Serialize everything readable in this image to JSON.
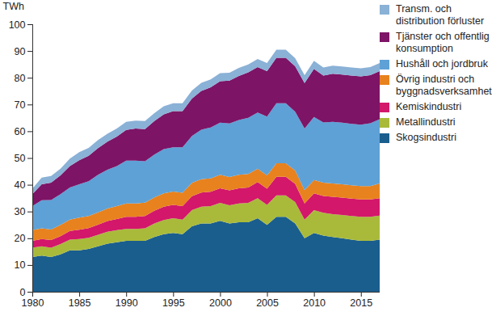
{
  "chart_data": {
    "type": "area",
    "stacked": true,
    "y_label": "TWh",
    "x": [
      1980,
      1981,
      1982,
      1983,
      1984,
      1985,
      1986,
      1987,
      1988,
      1989,
      1990,
      1991,
      1992,
      1993,
      1994,
      1995,
      1996,
      1997,
      1998,
      1999,
      2000,
      2001,
      2002,
      2003,
      2004,
      2005,
      2006,
      2007,
      2008,
      2009,
      2010,
      2011,
      2012,
      2013,
      2014,
      2015,
      2016,
      2017
    ],
    "xlim": [
      1980,
      2017
    ],
    "xticks": [
      1980,
      1985,
      1990,
      1995,
      2000,
      2005,
      2010,
      2015
    ],
    "ylim": [
      0,
      100
    ],
    "yticks": [
      0,
      10,
      20,
      30,
      40,
      50,
      60,
      70,
      80,
      90,
      100
    ],
    "grid": false,
    "legend": "right",
    "series": [
      {
        "name": "Skogsindustri",
        "color": "#1a5e8e",
        "values": [
          13,
          13.5,
          13,
          14,
          15.5,
          15.5,
          16,
          17,
          18,
          18.5,
          19,
          19,
          19,
          20.5,
          21.5,
          22,
          21.5,
          24.5,
          25.5,
          25.5,
          26.5,
          25.5,
          26,
          26,
          27.5,
          25,
          28,
          28,
          25.5,
          20,
          22,
          21,
          20.5,
          20,
          19.5,
          19,
          19,
          19.5
        ]
      },
      {
        "name": "Metallindustri",
        "color": "#a9ba3b",
        "values": [
          3.5,
          3.5,
          3.5,
          3.8,
          4,
          4.2,
          4.2,
          4.3,
          4.4,
          4.5,
          4.5,
          4.5,
          4.7,
          5,
          5.3,
          5.5,
          5.5,
          6,
          6.3,
          6.5,
          6.7,
          6.8,
          7,
          7.2,
          7.5,
          7.5,
          8,
          8,
          8,
          7,
          8.5,
          8.5,
          8.5,
          8.7,
          8.8,
          9,
          9,
          9
        ]
      },
      {
        "name": "Kemiskindustri",
        "color": "#d3176a",
        "values": [
          2.5,
          2.7,
          2.8,
          3,
          3.2,
          3.5,
          3.6,
          3.8,
          4,
          4.2,
          4.5,
          4.5,
          4.6,
          4.8,
          5,
          5,
          5,
          5.2,
          5.3,
          5.4,
          5.5,
          5.6,
          5.7,
          5.8,
          6,
          6,
          7,
          7,
          6.8,
          6,
          6.3,
          6.3,
          6.5,
          6.5,
          6.5,
          6.5,
          6.5,
          6.5
        ]
      },
      {
        "name": "Övrig industri och byggnadsverksamhet",
        "color": "#e8821e",
        "values": [
          4,
          4,
          4,
          4.2,
          4.3,
          4.5,
          4.5,
          4.6,
          4.7,
          4.8,
          5,
          5,
          5,
          5,
          5,
          5,
          5,
          5,
          5,
          5,
          5,
          5,
          5,
          5,
          5,
          5,
          5,
          5,
          5,
          5,
          5,
          5,
          5,
          5,
          5,
          5,
          5,
          5.5
        ]
      },
      {
        "name": "Hushåll och jordbruk",
        "color": "#5ea1d6",
        "values": [
          9,
          10.5,
          11,
          11.5,
          12,
          12.5,
          13,
          14,
          14.5,
          15,
          16,
          16,
          15.5,
          16,
          16.5,
          16.5,
          17,
          17.5,
          18.5,
          19,
          19.5,
          20,
          20.5,
          21,
          21,
          22,
          22.5,
          22.5,
          22,
          23,
          23.5,
          22.5,
          23,
          23,
          23,
          23,
          23.5,
          24
        ]
      },
      {
        "name": "Tjänster och offentlig konsumption",
        "color": "#7d1466",
        "values": [
          4.5,
          6,
          6.5,
          7,
          8,
          9,
          9.5,
          10,
          10.5,
          11,
          11.5,
          12,
          12,
          12.5,
          13,
          13.5,
          13.5,
          14,
          14.5,
          15,
          15.5,
          16,
          16.5,
          17,
          17,
          17,
          17,
          17,
          17,
          17,
          18,
          17.5,
          18,
          18,
          18,
          18,
          18,
          18
        ]
      },
      {
        "name": "Transm. och distribution förluster",
        "color": "#8ab1d6",
        "values": [
          2,
          2.5,
          2.5,
          2.5,
          2.8,
          3,
          3,
          3,
          3,
          3,
          3,
          3,
          3,
          3,
          3,
          3,
          3,
          3,
          3,
          3,
          3,
          3,
          3,
          3,
          3,
          3,
          3,
          3,
          3,
          3,
          3,
          3,
          3,
          3,
          3,
          3,
          3,
          3
        ]
      }
    ]
  }
}
